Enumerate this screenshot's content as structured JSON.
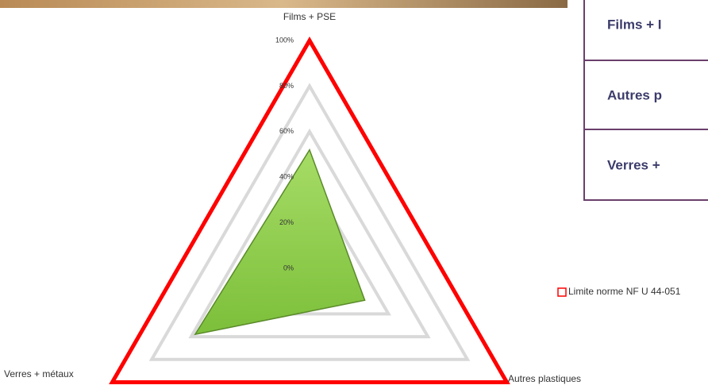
{
  "chart_data": {
    "type": "radar",
    "categories": [
      "Films + PSE",
      "Autres plastiques",
      "Verres + métaux"
    ],
    "series": [
      {
        "color": "#92d050",
        "values": [
          52,
          28,
          58
        ]
      },
      {
        "name": "Limite norme NF U 44-051",
        "color": "#ff0000",
        "values": [
          100,
          100,
          100
        ]
      }
    ],
    "ylim": [
      0,
      100
    ],
    "yticks": [
      {
        "value": 0,
        "label": "0%"
      },
      {
        "value": 20,
        "label": "20%"
      },
      {
        "value": 40,
        "label": "40%"
      },
      {
        "value": 60,
        "label": "60%"
      },
      {
        "value": 80,
        "label": "80%"
      },
      {
        "value": 100,
        "label": "100%"
      }
    ],
    "grid": true
  },
  "table": {
    "rows": [
      [
        "Films + I"
      ],
      [
        "Autres p"
      ],
      [
        "Verres +"
      ]
    ]
  }
}
